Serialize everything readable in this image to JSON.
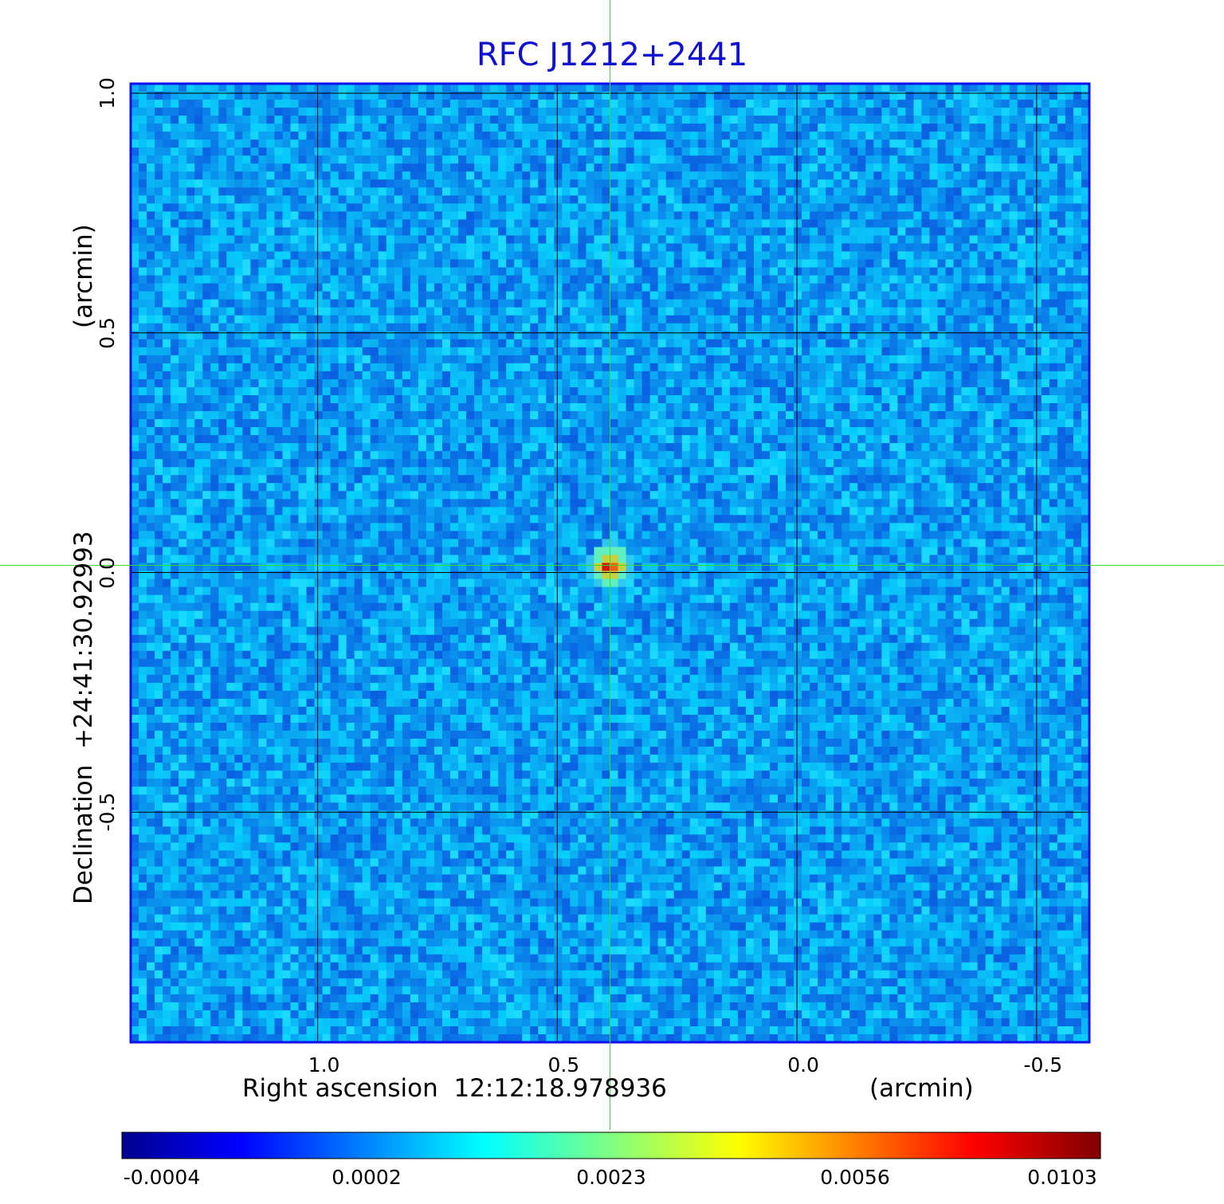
{
  "chart_data": {
    "type": "heatmap",
    "title": "RFC J1212+2441",
    "xlabel": "Right ascension  12:12:18.978936",
    "xunit": "(arcmin)",
    "ylabel": "Declination  +24:41:30.92993",
    "yunit": "(arcmin)",
    "xlim": [
      1.39,
      -0.61
    ],
    "ylim": [
      -0.98,
      1.02
    ],
    "xticks": [
      {
        "value": 1.0,
        "label": "1.0"
      },
      {
        "value": 0.5,
        "label": "0.5"
      },
      {
        "value": 0.0,
        "label": "0.0"
      },
      {
        "value": -0.5,
        "label": "-0.5"
      }
    ],
    "yticks": [
      {
        "value": 1.0,
        "label": "1.0"
      },
      {
        "value": 0.5,
        "label": "0.5"
      },
      {
        "value": 0.0,
        "label": "0.0"
      },
      {
        "value": -0.5,
        "label": "-0.5"
      }
    ],
    "grid": true,
    "crosshair": {
      "x": 0.39,
      "y": 0.015,
      "color": "#33dd33"
    },
    "source_peak": {
      "x": 0.39,
      "y": 0.015,
      "value": 0.0103
    },
    "colormap": "jet",
    "colorbar": {
      "placement": "bottom",
      "ticks": [
        "-0.0004",
        "0.0002",
        "0.0023",
        "0.0056",
        "0.0103"
      ]
    }
  }
}
